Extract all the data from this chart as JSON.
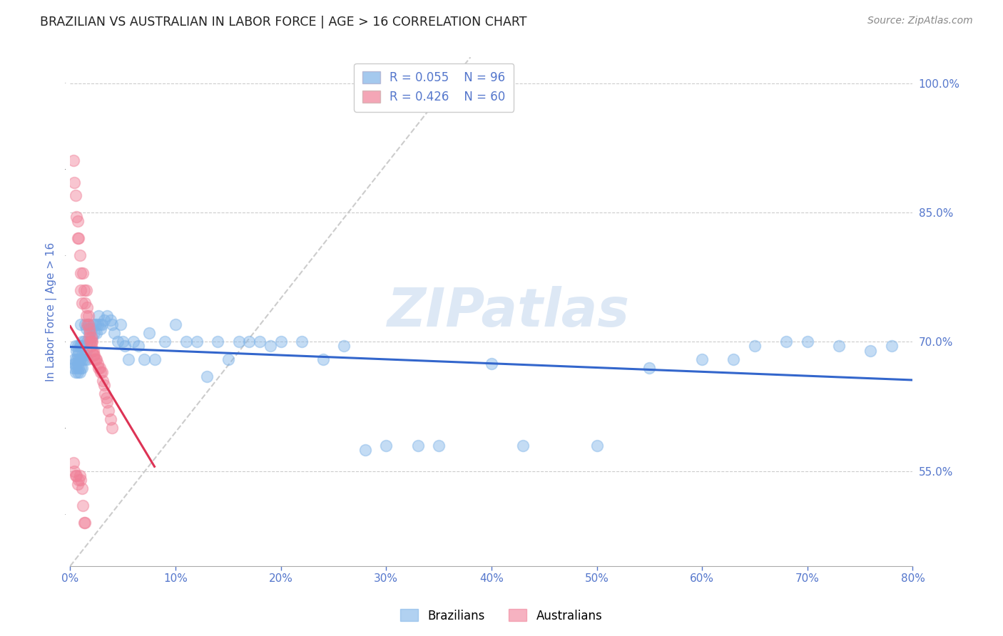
{
  "title": "BRAZILIAN VS AUSTRALIAN IN LABOR FORCE | AGE > 16 CORRELATION CHART",
  "source_text": "Source: ZipAtlas.com",
  "ylabel": "In Labor Force | Age > 16",
  "xlim": [
    0.0,
    0.8
  ],
  "ylim": [
    0.44,
    1.03
  ],
  "yticks": [
    0.55,
    0.7,
    0.85,
    1.0
  ],
  "xticks": [
    0.0,
    0.1,
    0.2,
    0.3,
    0.4,
    0.5,
    0.6,
    0.7,
    0.8
  ],
  "blue_color": "#7EB3E8",
  "pink_color": "#F08098",
  "blue_R": 0.055,
  "blue_N": 96,
  "pink_R": 0.426,
  "pink_N": 60,
  "axis_color": "#5577CC",
  "grid_color": "#CCCCCC",
  "watermark_color": "#DDE8F5",
  "blue_scatter": [
    [
      0.003,
      0.67
    ],
    [
      0.004,
      0.675
    ],
    [
      0.004,
      0.68
    ],
    [
      0.005,
      0.665
    ],
    [
      0.005,
      0.675
    ],
    [
      0.005,
      0.695
    ],
    [
      0.006,
      0.67
    ],
    [
      0.006,
      0.68
    ],
    [
      0.006,
      0.69
    ],
    [
      0.007,
      0.665
    ],
    [
      0.007,
      0.675
    ],
    [
      0.007,
      0.685
    ],
    [
      0.007,
      0.695
    ],
    [
      0.008,
      0.67
    ],
    [
      0.008,
      0.68
    ],
    [
      0.008,
      0.69
    ],
    [
      0.009,
      0.665
    ],
    [
      0.009,
      0.68
    ],
    [
      0.009,
      0.695
    ],
    [
      0.01,
      0.67
    ],
    [
      0.01,
      0.68
    ],
    [
      0.01,
      0.695
    ],
    [
      0.01,
      0.72
    ],
    [
      0.011,
      0.67
    ],
    [
      0.011,
      0.685
    ],
    [
      0.011,
      0.7
    ],
    [
      0.012,
      0.68
    ],
    [
      0.012,
      0.695
    ],
    [
      0.013,
      0.685
    ],
    [
      0.013,
      0.7
    ],
    [
      0.014,
      0.68
    ],
    [
      0.014,
      0.72
    ],
    [
      0.015,
      0.69
    ],
    [
      0.015,
      0.715
    ],
    [
      0.016,
      0.68
    ],
    [
      0.016,
      0.7
    ],
    [
      0.017,
      0.72
    ],
    [
      0.018,
      0.71
    ],
    [
      0.019,
      0.7
    ],
    [
      0.02,
      0.715
    ],
    [
      0.021,
      0.705
    ],
    [
      0.022,
      0.72
    ],
    [
      0.023,
      0.71
    ],
    [
      0.024,
      0.72
    ],
    [
      0.025,
      0.71
    ],
    [
      0.026,
      0.72
    ],
    [
      0.027,
      0.73
    ],
    [
      0.028,
      0.72
    ],
    [
      0.029,
      0.715
    ],
    [
      0.03,
      0.72
    ],
    [
      0.032,
      0.725
    ],
    [
      0.035,
      0.73
    ],
    [
      0.038,
      0.725
    ],
    [
      0.04,
      0.72
    ],
    [
      0.042,
      0.71
    ],
    [
      0.045,
      0.7
    ],
    [
      0.048,
      0.72
    ],
    [
      0.05,
      0.7
    ],
    [
      0.052,
      0.695
    ],
    [
      0.055,
      0.68
    ],
    [
      0.06,
      0.7
    ],
    [
      0.065,
      0.695
    ],
    [
      0.07,
      0.68
    ],
    [
      0.075,
      0.71
    ],
    [
      0.08,
      0.68
    ],
    [
      0.09,
      0.7
    ],
    [
      0.1,
      0.72
    ],
    [
      0.11,
      0.7
    ],
    [
      0.12,
      0.7
    ],
    [
      0.13,
      0.66
    ],
    [
      0.14,
      0.7
    ],
    [
      0.15,
      0.68
    ],
    [
      0.16,
      0.7
    ],
    [
      0.17,
      0.7
    ],
    [
      0.18,
      0.7
    ],
    [
      0.19,
      0.695
    ],
    [
      0.2,
      0.7
    ],
    [
      0.22,
      0.7
    ],
    [
      0.24,
      0.68
    ],
    [
      0.26,
      0.695
    ],
    [
      0.28,
      0.575
    ],
    [
      0.3,
      0.58
    ],
    [
      0.33,
      0.58
    ],
    [
      0.35,
      0.58
    ],
    [
      0.4,
      0.675
    ],
    [
      0.43,
      0.58
    ],
    [
      0.5,
      0.58
    ],
    [
      0.55,
      0.67
    ],
    [
      0.6,
      0.68
    ],
    [
      0.63,
      0.68
    ],
    [
      0.65,
      0.695
    ],
    [
      0.68,
      0.7
    ],
    [
      0.7,
      0.7
    ],
    [
      0.73,
      0.695
    ],
    [
      0.76,
      0.69
    ],
    [
      0.78,
      0.695
    ]
  ],
  "pink_scatter": [
    [
      0.003,
      0.91
    ],
    [
      0.004,
      0.885
    ],
    [
      0.005,
      0.87
    ],
    [
      0.006,
      0.845
    ],
    [
      0.007,
      0.82
    ],
    [
      0.007,
      0.84
    ],
    [
      0.008,
      0.82
    ],
    [
      0.009,
      0.8
    ],
    [
      0.01,
      0.76
    ],
    [
      0.01,
      0.78
    ],
    [
      0.011,
      0.745
    ],
    [
      0.012,
      0.78
    ],
    [
      0.013,
      0.76
    ],
    [
      0.014,
      0.745
    ],
    [
      0.015,
      0.73
    ],
    [
      0.015,
      0.76
    ],
    [
      0.016,
      0.72
    ],
    [
      0.016,
      0.74
    ],
    [
      0.017,
      0.72
    ],
    [
      0.017,
      0.73
    ],
    [
      0.018,
      0.705
    ],
    [
      0.018,
      0.715
    ],
    [
      0.019,
      0.7
    ],
    [
      0.019,
      0.71
    ],
    [
      0.02,
      0.695
    ],
    [
      0.02,
      0.705
    ],
    [
      0.02,
      0.7
    ],
    [
      0.021,
      0.69
    ],
    [
      0.021,
      0.7
    ],
    [
      0.022,
      0.69
    ],
    [
      0.022,
      0.685
    ],
    [
      0.023,
      0.685
    ],
    [
      0.023,
      0.68
    ],
    [
      0.024,
      0.68
    ],
    [
      0.025,
      0.68
    ],
    [
      0.026,
      0.675
    ],
    [
      0.027,
      0.67
    ],
    [
      0.028,
      0.67
    ],
    [
      0.029,
      0.665
    ],
    [
      0.03,
      0.665
    ],
    [
      0.031,
      0.655
    ],
    [
      0.032,
      0.65
    ],
    [
      0.033,
      0.64
    ],
    [
      0.034,
      0.635
    ],
    [
      0.035,
      0.63
    ],
    [
      0.036,
      0.62
    ],
    [
      0.038,
      0.61
    ],
    [
      0.04,
      0.6
    ],
    [
      0.003,
      0.56
    ],
    [
      0.004,
      0.55
    ],
    [
      0.005,
      0.545
    ],
    [
      0.006,
      0.545
    ],
    [
      0.007,
      0.535
    ],
    [
      0.008,
      0.54
    ],
    [
      0.009,
      0.545
    ],
    [
      0.01,
      0.54
    ],
    [
      0.011,
      0.53
    ],
    [
      0.012,
      0.51
    ],
    [
      0.013,
      0.49
    ],
    [
      0.014,
      0.49
    ]
  ]
}
